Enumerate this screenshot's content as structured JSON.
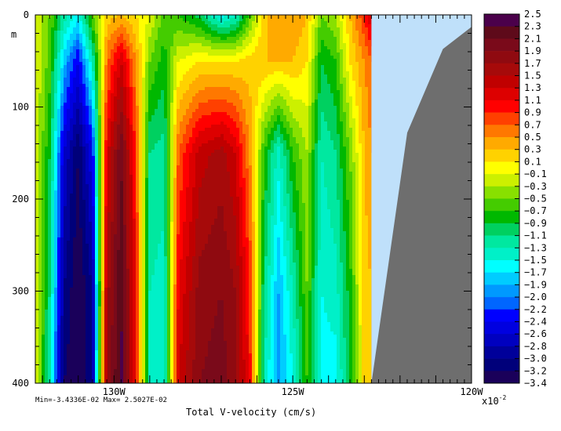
{
  "chart_data": {
    "type": "heatmap",
    "title": "",
    "xlabel": "Total V-velocity (cm/s)",
    "ylabel": "m",
    "xlim": [
      -132.2,
      -120
    ],
    "ylim": [
      400,
      0
    ],
    "x_ticks": [
      {
        "value": -130,
        "label": "130W"
      },
      {
        "value": -125,
        "label": "125W"
      },
      {
        "value": -120,
        "label": "120W"
      }
    ],
    "y_ticks": [
      {
        "value": 0,
        "label": "0"
      },
      {
        "value": 100,
        "label": "100"
      },
      {
        "value": 200,
        "label": "200"
      },
      {
        "value": 300,
        "label": "300"
      },
      {
        "value": 400,
        "label": "400"
      }
    ],
    "stats_text": "Min=-3.4336E-02  Max= 2.5027E-02",
    "multiplier": "x10",
    "multiplier_exp": "-2",
    "colorbar": {
      "levels": [
        "2.5",
        "2.3",
        "2.1",
        "1.9",
        "1.7",
        "1.5",
        "1.3",
        "1.1",
        "0.9",
        "0.7",
        "0.5",
        "0.3",
        "0.1",
        "-0.1",
        "-0.3",
        "-0.5",
        "-0.7",
        "-0.9",
        "-1.1",
        "-1.3",
        "-1.5",
        "-1.7",
        "-1.9",
        "-2.0",
        "-2.2",
        "-2.4",
        "-2.6",
        "-2.8",
        "-3.0",
        "-3.2",
        "-3.4"
      ],
      "colors": [
        "#4b004b",
        "#5e0a1a",
        "#7a0a1a",
        "#8f0a10",
        "#a60a0a",
        "#c00000",
        "#dd0000",
        "#ff0000",
        "#ff4000",
        "#ff7800",
        "#ffaa00",
        "#ffd200",
        "#ffff00",
        "#ccf000",
        "#88e000",
        "#44cc00",
        "#00b800",
        "#00d060",
        "#00e8a0",
        "#00f0c8",
        "#00ffff",
        "#00ccff",
        "#0099ff",
        "#0066ff",
        "#0000ff",
        "#0000e0",
        "#0000c0",
        "#00009a",
        "#00007a",
        "#1a005a"
      ]
    },
    "columns": [
      {
        "x": -132.2,
        "profile": [
          -0.1,
          -0.1,
          -0.1,
          -0.1,
          -0.1
        ]
      },
      {
        "x": -131.8,
        "profile": [
          -0.5,
          -0.6,
          -0.9,
          -1.1,
          -1.3
        ]
      },
      {
        "x": -131.4,
        "profile": [
          -1.2,
          -1.8,
          -2.6,
          -3.0,
          -3.2
        ]
      },
      {
        "x": -131.0,
        "profile": [
          -1.6,
          -2.4,
          -3.2,
          -3.4,
          -3.4
        ]
      },
      {
        "x": -130.6,
        "profile": [
          -0.5,
          -1.3,
          -2.4,
          -3.0,
          -3.0
        ]
      },
      {
        "x": -130.2,
        "profile": [
          0.2,
          0.6,
          1.2,
          1.6,
          1.7
        ]
      },
      {
        "x": -129.8,
        "profile": [
          0.3,
          1.3,
          2.1,
          2.3,
          2.4
        ]
      },
      {
        "x": -129.4,
        "profile": [
          0.1,
          0.5,
          0.9,
          1.1,
          1.1
        ]
      },
      {
        "x": -129.0,
        "profile": [
          -0.1,
          -0.5,
          -1.1,
          -1.3,
          -1.3
        ]
      },
      {
        "x": -128.6,
        "profile": [
          -0.6,
          -0.8,
          -1.2,
          -1.4,
          -1.4
        ]
      },
      {
        "x": -128.2,
        "profile": [
          -0.7,
          -0.1,
          0.7,
          1.1,
          1.3
        ]
      },
      {
        "x": -127.6,
        "profile": [
          -1.0,
          0.1,
          1.4,
          1.8,
          1.9
        ]
      },
      {
        "x": -127.0,
        "profile": [
          -1.6,
          0.1,
          1.6,
          1.9,
          2.0
        ]
      },
      {
        "x": -126.6,
        "profile": [
          -1.4,
          0.1,
          1.3,
          1.7,
          1.8
        ]
      },
      {
        "x": -126.2,
        "profile": [
          -0.6,
          0.2,
          0.5,
          0.9,
          1.0
        ]
      },
      {
        "x": -125.8,
        "profile": [
          0.2,
          0.3,
          -0.7,
          -1.1,
          -1.3
        ]
      },
      {
        "x": -125.4,
        "profile": [
          0.5,
          0.3,
          -1.4,
          -1.9,
          -2.0
        ]
      },
      {
        "x": -125.0,
        "profile": [
          0.5,
          0.3,
          -0.7,
          -1.3,
          -1.5
        ]
      },
      {
        "x": -124.6,
        "profile": [
          0.3,
          0.1,
          -0.3,
          -0.5,
          -0.7
        ]
      },
      {
        "x": -124.2,
        "profile": [
          -0.5,
          -0.9,
          -1.3,
          -1.5,
          -1.6
        ]
      },
      {
        "x": -123.8,
        "profile": [
          -0.3,
          -0.7,
          -1.1,
          -1.4,
          -1.6
        ]
      },
      {
        "x": -123.4,
        "profile": [
          0.3,
          0.1,
          -0.5,
          -0.8,
          -0.9
        ]
      },
      {
        "x": -123.0,
        "profile": [
          0.9,
          0.5,
          0.3,
          0.2,
          0.2
        ]
      },
      {
        "x": -122.8,
        "profile": [
          1.3,
          0.7,
          0.5,
          0.3,
          0.3
        ]
      }
    ],
    "profile_depths": [
      0,
      50,
      150,
      300,
      400
    ],
    "no_data_color": "#bfe0fa",
    "land_color": "#6e6e6e",
    "land_outline": [
      {
        "x": -122.8,
        "y": 400
      },
      {
        "x": -121.8,
        "y": 128
      },
      {
        "x": -120.8,
        "y": 37
      },
      {
        "x": -120.0,
        "y": 13
      },
      {
        "x": -120.0,
        "y": 400
      }
    ],
    "data_edge_x": -122.8
  }
}
